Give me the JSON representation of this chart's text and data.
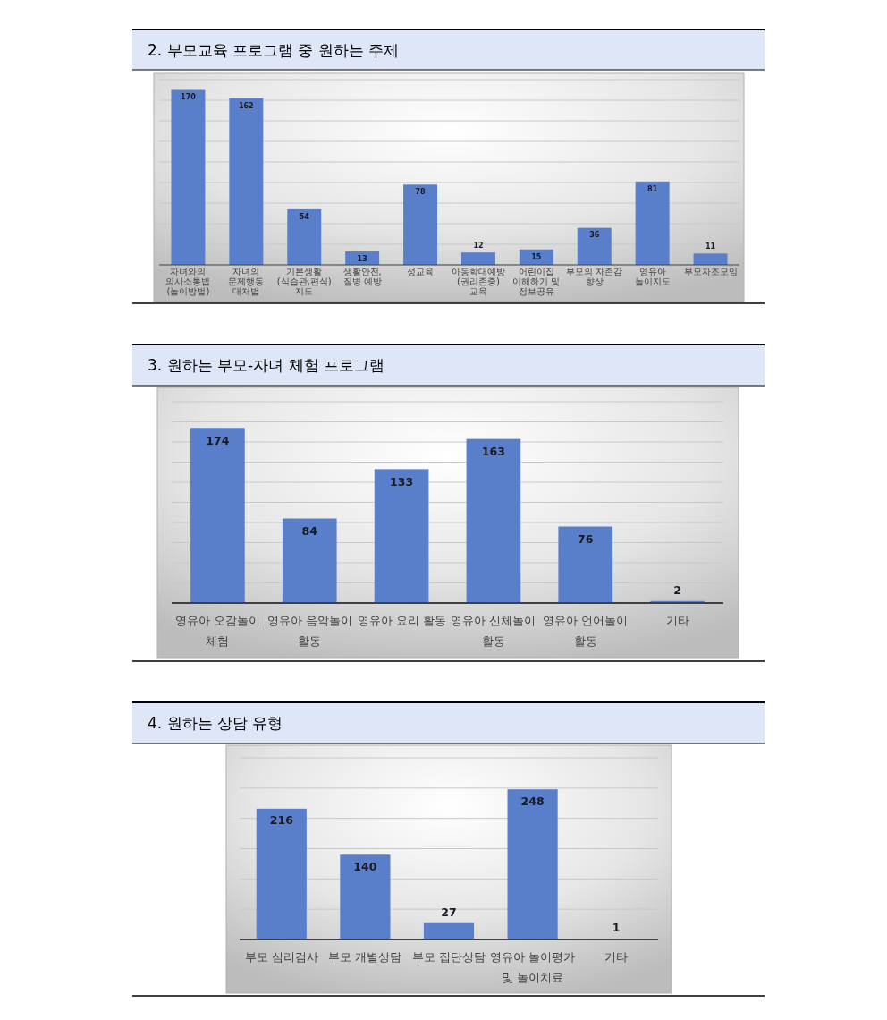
{
  "chart_data": [
    {
      "type": "bar",
      "title": "2. 부모교육 프로그램 중 원하는 주제",
      "categories": [
        "자녀와의 의사소통법 (놀이방법)",
        "자녀의 문제행동 대처법",
        "기본생활(식습관,편식)지도",
        "생활안전, 질병 예방",
        "성교육",
        "아동학대예방 (권리존중) 교육",
        "어린이집 이해하기 및 정보공유",
        "부모의 자존감 향상",
        "영유아 놀이지도",
        "부모자조모임"
      ],
      "values": [
        170,
        162,
        54,
        13,
        78,
        12,
        15,
        36,
        81,
        11
      ],
      "color": "#5a7fca",
      "ylim": [
        0,
        180
      ],
      "yticks": [
        {
          "value": 0,
          "label": null
        },
        {
          "value": 20,
          "label": null
        },
        {
          "value": 40,
          "label": null
        },
        {
          "value": 60,
          "label": null
        },
        {
          "value": 80,
          "label": null
        },
        {
          "value": 100,
          "label": null
        },
        {
          "value": 120,
          "label": null
        },
        {
          "value": 140,
          "label": null
        },
        {
          "value": 160,
          "label": null
        },
        {
          "value": 180,
          "label": null
        }
      ],
      "grid": "y",
      "tick_labels": "x",
      "data_labels": true
    },
    {
      "type": "bar",
      "title": "3. 원하는 부모-자녀 체험 프로그램",
      "categories": [
        "영유아 오감놀이 체험",
        "영유아 음악놀이 활동",
        "영유아 요리 활동",
        "영유아 신체놀이 활동",
        "영유아 언어놀이 활동",
        "기타"
      ],
      "values": [
        174,
        84,
        133,
        163,
        76,
        2
      ],
      "color": "#5a7fca",
      "ylim": [
        0,
        200
      ],
      "yticks": [
        {
          "value": 0,
          "label": null
        },
        {
          "value": 20,
          "label": null
        },
        {
          "value": 40,
          "label": null
        },
        {
          "value": 60,
          "label": null
        },
        {
          "value": 80,
          "label": null
        },
        {
          "value": 100,
          "label": null
        },
        {
          "value": 120,
          "label": null
        },
        {
          "value": 140,
          "label": null
        },
        {
          "value": 160,
          "label": null
        },
        {
          "value": 180,
          "label": null
        },
        {
          "value": 200,
          "label": null
        }
      ],
      "grid": "y",
      "tick_labels": "x",
      "data_labels": true
    },
    {
      "type": "bar",
      "title": "4. 원하는 상담 유형",
      "categories": [
        "부모 심리검사",
        "부모 개별상담",
        "부모 집단상담",
        "영유아 놀이평가 및 놀이치료",
        "기타"
      ],
      "values": [
        216,
        140,
        27,
        248,
        1
      ],
      "color": "#5a7fca",
      "ylim": [
        0,
        300
      ],
      "yticks": [
        {
          "value": 0,
          "label": null
        },
        {
          "value": 50,
          "label": null
        },
        {
          "value": 100,
          "label": null
        },
        {
          "value": 150,
          "label": null
        },
        {
          "value": 200,
          "label": null
        },
        {
          "value": 250,
          "label": null
        },
        {
          "value": 300,
          "label": null
        }
      ],
      "grid": "y",
      "tick_labels": "x",
      "data_labels": true
    }
  ]
}
